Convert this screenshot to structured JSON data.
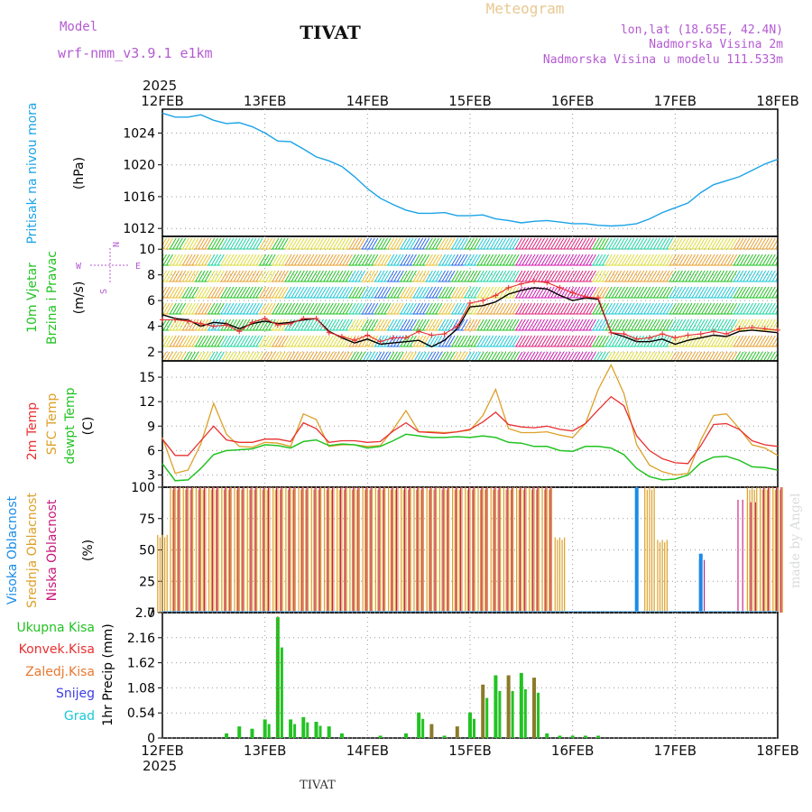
{
  "header": {
    "model_label": "Model",
    "model_name": "wrf-nmm_v3.9.1 e1km",
    "station": "TIVAT",
    "meteogram": "Meteogram",
    "lonlat": "lon,lat (18.65E, 42.4N)",
    "altitude": "Nadmorska Visina 2m",
    "model_altitude": "Nadmorska Visina u modelu 111.533m",
    "year_top": "2025",
    "year_bottom": "2025",
    "footer_station": "TIVAT",
    "credit": "made by Angel"
  },
  "colors": {
    "pressure": "#1aa3e8",
    "temp2m": "#e83030",
    "sfc": "#dca028",
    "dewpt": "#22c322",
    "high_cloud": "#1a8ce8",
    "mid_cloud": "#dca028",
    "low_cloud": "#c8197a",
    "rain_total": "#22c322",
    "purple_text": "#b45ad2"
  },
  "chart_data": [
    {
      "type": "line",
      "panel": "pressure",
      "x_ticks": [
        "12FEB",
        "13FEB",
        "14FEB",
        "15FEB",
        "16FEB",
        "17FEB",
        "18FEB"
      ],
      "ylabel_left": "Pritisak na nivou mora",
      "ylabel_unit": "(hPa)",
      "ylim": [
        1011,
        1027
      ],
      "yticks": [
        "1012",
        "1016",
        "1020",
        "1024"
      ],
      "grid": true,
      "series": [
        {
          "values": [
            1026.5,
            1026,
            1026,
            1026.3,
            1025.6,
            1025.2,
            1025.3,
            1024.8,
            1024.0,
            1023.0,
            1022.9,
            1022.0,
            1021.0,
            1020.5,
            1019.8,
            1018.5,
            1017.0,
            1015.8,
            1015.0,
            1014.3,
            1013.9,
            1013.9,
            1014.0,
            1013.6,
            1013.6,
            1013.7,
            1013.2,
            1013.0,
            1012.7,
            1012.9,
            1013.0,
            1012.8,
            1012.6,
            1012.6,
            1012.4,
            1012.3,
            1012.4,
            1012.6,
            1013.2,
            1014.0,
            1014.6,
            1015.2,
            1016.5,
            1017.5,
            1018.0,
            1018.5,
            1019.3,
            1020.1,
            1020.7
          ]
        }
      ]
    },
    {
      "type": "line",
      "panel": "wind",
      "ylabel_left": [
        "10m Vjetar",
        "Brzina i Pravac"
      ],
      "ylabel_unit": "(m/s)",
      "compass": [
        "N",
        "W",
        "E",
        "S"
      ],
      "ylim": [
        1.3,
        11
      ],
      "yticks": [
        "2",
        "4",
        "6",
        "8",
        "10"
      ],
      "grid": true,
      "series": [
        {
          "values": [
            4.9,
            4.6,
            4.5,
            4.0,
            4.3,
            4.2,
            3.8,
            4.2,
            4.4,
            4.2,
            4.3,
            4.5,
            4.6,
            3.6,
            3.1,
            2.7,
            3.0,
            2.6,
            2.7,
            2.8,
            2.9,
            2.4,
            2.9,
            3.8,
            5.5,
            5.6,
            5.9,
            6.5,
            6.8,
            7.0,
            6.9,
            6.4,
            6.0,
            6.2,
            6.1,
            3.5,
            3.2,
            2.8,
            2.8,
            3.0,
            2.6,
            2.9,
            3.1,
            3.3,
            3.2,
            3.6,
            3.7,
            3.6,
            3.5
          ]
        },
        {
          "values": [
            4.5,
            4.5,
            4.4,
            4.2,
            4.0,
            4.1,
            3.6,
            4.3,
            4.6,
            4.1,
            4.2,
            4.6,
            4.6,
            3.5,
            3.2,
            2.9,
            3.3,
            2.8,
            3.1,
            3.1,
            3.6,
            3.3,
            3.4,
            4.0,
            5.8,
            6.0,
            6.4,
            7.0,
            7.3,
            7.5,
            7.4,
            7.0,
            6.6,
            6.3,
            6.2,
            3.5,
            3.4,
            3.0,
            3.1,
            3.4,
            3.1,
            3.3,
            3.4,
            3.6,
            3.4,
            3.8,
            3.9,
            3.8,
            3.7
          ]
        }
      ]
    },
    {
      "type": "line",
      "panel": "temperature",
      "ylabel_left": [
        "2m Temp",
        "SFC Temp",
        "dewpt Temp"
      ],
      "ylabel_unit": "(C)",
      "ylim": [
        1.5,
        17
      ],
      "yticks": [
        "3",
        "6",
        "9",
        "12",
        "15"
      ],
      "grid": true,
      "series": [
        {
          "name": "2m Temp",
          "values": [
            7.4,
            5.4,
            5.4,
            7.2,
            9.0,
            7.3,
            7.0,
            7.0,
            7.4,
            7.4,
            7.1,
            9.4,
            8.7,
            7.0,
            7.2,
            7.2,
            7.0,
            7.1,
            8.4,
            9.4,
            8.3,
            8.2,
            8.1,
            8.3,
            8.6,
            9.5,
            10.7,
            9.2,
            8.9,
            8.8,
            9.0,
            8.6,
            8.4,
            9.3,
            11.0,
            12.6,
            11.5,
            7.8,
            6.0,
            5.0,
            4.5,
            4.4,
            6.6,
            9.2,
            9.3,
            8.6,
            7.2,
            6.7,
            6.5
          ]
        },
        {
          "name": "SFC Temp",
          "values": [
            7.6,
            3.2,
            3.6,
            6.8,
            11.8,
            8.0,
            6.5,
            6.4,
            7.0,
            6.9,
            6.5,
            10.5,
            9.8,
            6.5,
            6.7,
            6.7,
            6.5,
            6.6,
            8.6,
            10.9,
            8.3,
            8.3,
            8.2,
            8.3,
            8.5,
            10.3,
            13.5,
            8.7,
            8.2,
            8.2,
            8.3,
            7.9,
            7.6,
            9.3,
            13.5,
            16.5,
            13.0,
            6.7,
            4.2,
            3.4,
            3.0,
            3.2,
            7.3,
            10.3,
            10.5,
            8.7,
            6.7,
            6.3,
            5.4
          ]
        },
        {
          "name": "dewpt Temp",
          "values": [
            4.4,
            2.3,
            2.4,
            3.8,
            5.5,
            6.0,
            6.1,
            6.2,
            6.7,
            6.6,
            6.3,
            7.1,
            7.3,
            6.6,
            6.8,
            6.7,
            6.3,
            6.5,
            7.2,
            8.0,
            7.8,
            7.6,
            7.6,
            7.7,
            7.6,
            7.8,
            7.6,
            7.0,
            6.9,
            6.5,
            6.5,
            6.0,
            5.9,
            6.5,
            6.5,
            6.3,
            5.5,
            3.8,
            2.8,
            2.4,
            2.5,
            3.0,
            4.5,
            5.2,
            5.3,
            4.8,
            4.0,
            3.9,
            3.6
          ]
        }
      ]
    },
    {
      "type": "bar",
      "panel": "clouds",
      "ylabel_left": [
        "Visoka Oblacnost",
        "Srednja Oblacnost",
        "Niska Oblacnost"
      ],
      "ylabel_unit": "(%)",
      "ylim": [
        0,
        100
      ],
      "yticks": [
        "0",
        "25",
        "50",
        "75",
        "100"
      ],
      "grid": true,
      "series": [
        {
          "name": "Visoka Oblacnost",
          "values": [
            0,
            0,
            0,
            0,
            0,
            0,
            0,
            0,
            0,
            0,
            0,
            0,
            0,
            0,
            0,
            0,
            0,
            0,
            0,
            0,
            0,
            0,
            0,
            0,
            0,
            0,
            0,
            0,
            0,
            0,
            0,
            0,
            0,
            0,
            0,
            0,
            0,
            100,
            0,
            0,
            0,
            0,
            47,
            0,
            0,
            0,
            0,
            0,
            0
          ]
        },
        {
          "name": "Srednja Oblacnost",
          "values": [
            62,
            100,
            100,
            100,
            100,
            100,
            100,
            100,
            100,
            100,
            100,
            100,
            100,
            100,
            100,
            100,
            100,
            100,
            100,
            100,
            100,
            100,
            100,
            100,
            100,
            100,
            100,
            100,
            100,
            100,
            100,
            60,
            0,
            0,
            0,
            0,
            0,
            0,
            100,
            58,
            0,
            0,
            0,
            0,
            0,
            0,
            100,
            100,
            100
          ]
        },
        {
          "name": "Niska Oblacnost",
          "values": [
            0,
            100,
            100,
            100,
            100,
            100,
            100,
            100,
            100,
            100,
            100,
            100,
            100,
            100,
            100,
            100,
            100,
            100,
            100,
            100,
            100,
            100,
            100,
            100,
            100,
            100,
            100,
            100,
            100,
            100,
            100,
            0,
            0,
            0,
            0,
            0,
            0,
            0,
            0,
            0,
            0,
            0,
            42,
            0,
            0,
            90,
            88,
            100,
            100
          ]
        }
      ]
    },
    {
      "type": "bar",
      "panel": "precip",
      "ylabel_left": [
        "Ukupna Kisa",
        "Konvek.Kisa",
        "Zaledj.Kisa",
        "Snijeg",
        "Grad"
      ],
      "ylabel_unit": "1hr Precip (mm)",
      "ylim": [
        0,
        2.7
      ],
      "yticks": [
        "0",
        "0.54",
        "1.08",
        "1.62",
        "2.16",
        "2.7"
      ],
      "grid": true,
      "x_ticks": [
        "12FEB",
        "13FEB",
        "14FEB",
        "15FEB",
        "16FEB",
        "17FEB",
        "18FEB"
      ],
      "series": [
        {
          "name": "Ukupna Kisa",
          "values": [
            0,
            0,
            0,
            0,
            0,
            0.1,
            0.25,
            0.2,
            0.4,
            2.6,
            0.4,
            0.45,
            0.35,
            0.25,
            0.1,
            0,
            0,
            0.05,
            0,
            0.1,
            0.55,
            0.3,
            0.05,
            0.25,
            0.55,
            1.15,
            1.35,
            1.35,
            1.4,
            1.3,
            0.1,
            0.05,
            0.05,
            0.05,
            0.05,
            0,
            0,
            0,
            0,
            0,
            0,
            0,
            0,
            0,
            0,
            0,
            0,
            0,
            0
          ]
        }
      ]
    }
  ]
}
